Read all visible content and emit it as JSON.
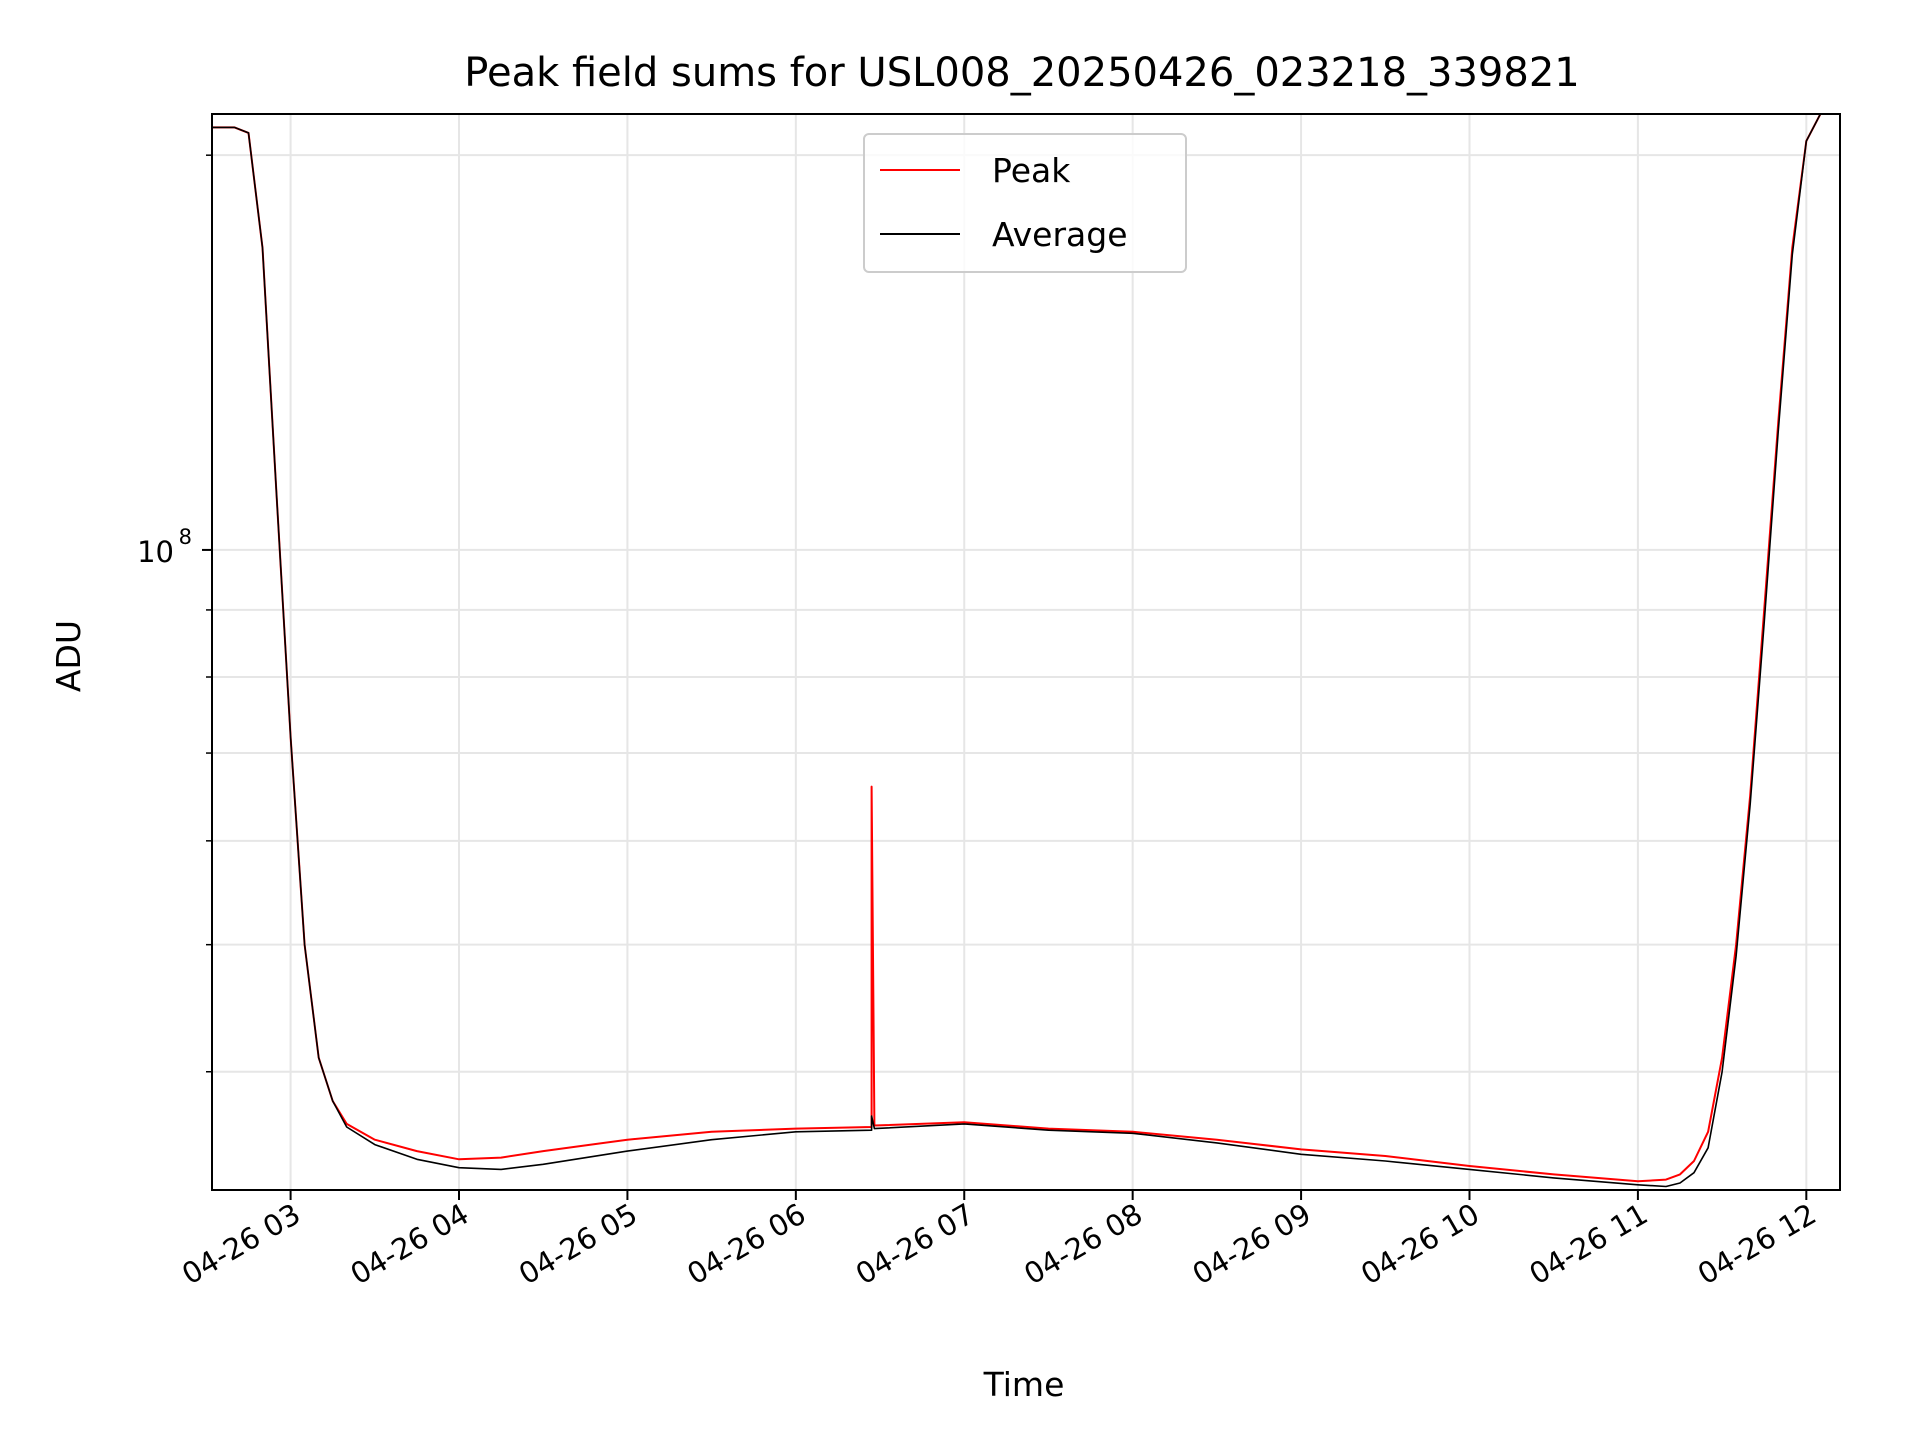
{
  "chart_data": {
    "type": "line",
    "title": "Peak field sums for USL008_20250426_023218_339821",
    "xlabel": "Time",
    "ylabel": "ADU",
    "yscale": "log",
    "grid": true,
    "legend_position": "upper-center",
    "x_tick_labels": [
      "04-26 03",
      "04-26 04",
      "04-26 05",
      "04-26 06",
      "04-26 07",
      "04-26 08",
      "04-26 09",
      "04-26 10",
      "04-26 11",
      "04-26 12"
    ],
    "y_tick_labels": [
      {
        "base": "10",
        "exponent": "8",
        "value": 100000000
      }
    ],
    "xlim": [
      "2025-04-26 02:32",
      "2025-04-26 12:12"
    ],
    "ylim": [
      32500000,
      215000000
    ],
    "series": [
      {
        "name": "Peak",
        "color": "#ff0000",
        "x": [
          "2025-04-26 02:32",
          "2025-04-26 02:40",
          "2025-04-26 02:45",
          "2025-04-26 02:50",
          "2025-04-26 02:55",
          "2025-04-26 03:00",
          "2025-04-26 03:05",
          "2025-04-26 03:10",
          "2025-04-26 03:15",
          "2025-04-26 03:20",
          "2025-04-26 03:30",
          "2025-04-26 03:45",
          "2025-04-26 04:00",
          "2025-04-26 04:15",
          "2025-04-26 04:30",
          "2025-04-26 05:00",
          "2025-04-26 05:30",
          "2025-04-26 06:00",
          "2025-04-26 06:27",
          "2025-04-26 06:27",
          "2025-04-26 06:28",
          "2025-04-26 07:00",
          "2025-04-26 07:30",
          "2025-04-26 08:00",
          "2025-04-26 08:30",
          "2025-04-26 09:00",
          "2025-04-26 09:30",
          "2025-04-26 10:00",
          "2025-04-26 10:30",
          "2025-04-26 11:00",
          "2025-04-26 11:10",
          "2025-04-26 11:15",
          "2025-04-26 11:20",
          "2025-04-26 11:25",
          "2025-04-26 11:30",
          "2025-04-26 11:35",
          "2025-04-26 11:40",
          "2025-04-26 11:45",
          "2025-04-26 11:50",
          "2025-04-26 11:55",
          "2025-04-26 12:00",
          "2025-04-26 12:05"
        ],
        "values": [
          210000000,
          210000000,
          208000000,
          170000000,
          110000000,
          72000000,
          50000000,
          41000000,
          38000000,
          36500000,
          35500000,
          34800000,
          34300000,
          34400000,
          34800000,
          35500000,
          36000000,
          36200000,
          36300000,
          66000000,
          36400000,
          36600000,
          36200000,
          36000000,
          35500000,
          34900000,
          34500000,
          33900000,
          33400000,
          33000000,
          33100000,
          33400000,
          34200000,
          36000000,
          41000000,
          50000000,
          65000000,
          90000000,
          125000000,
          170000000,
          205000000,
          215000000
        ]
      },
      {
        "name": "Average",
        "color": "#000000",
        "x": [
          "2025-04-26 02:32",
          "2025-04-26 02:40",
          "2025-04-26 02:45",
          "2025-04-26 02:50",
          "2025-04-26 02:55",
          "2025-04-26 03:00",
          "2025-04-26 03:05",
          "2025-04-26 03:10",
          "2025-04-26 03:15",
          "2025-04-26 03:20",
          "2025-04-26 03:30",
          "2025-04-26 03:45",
          "2025-04-26 04:00",
          "2025-04-26 04:15",
          "2025-04-26 04:30",
          "2025-04-26 05:00",
          "2025-04-26 05:30",
          "2025-04-26 06:00",
          "2025-04-26 06:27",
          "2025-04-26 06:27",
          "2025-04-26 06:28",
          "2025-04-26 07:00",
          "2025-04-26 07:30",
          "2025-04-26 08:00",
          "2025-04-26 08:30",
          "2025-04-26 09:00",
          "2025-04-26 09:30",
          "2025-04-26 10:00",
          "2025-04-26 10:30",
          "2025-04-26 11:00",
          "2025-04-26 11:10",
          "2025-04-26 11:15",
          "2025-04-26 11:20",
          "2025-04-26 11:25",
          "2025-04-26 11:30",
          "2025-04-26 11:35",
          "2025-04-26 11:40",
          "2025-04-26 11:45",
          "2025-04-26 11:50",
          "2025-04-26 11:55",
          "2025-04-26 12:00",
          "2025-04-26 12:05"
        ],
        "values": [
          210000000,
          210000000,
          208000000,
          170000000,
          110000000,
          72000000,
          50000000,
          41000000,
          38000000,
          36300000,
          35200000,
          34300000,
          33800000,
          33700000,
          34000000,
          34800000,
          35500000,
          36000000,
          36100000,
          37000000,
          36200000,
          36500000,
          36100000,
          35900000,
          35300000,
          34600000,
          34200000,
          33700000,
          33200000,
          32800000,
          32700000,
          32900000,
          33500000,
          35000000,
          40000000,
          49000000,
          64000000,
          88000000,
          123000000,
          168000000,
          205000000,
          215000000
        ]
      }
    ]
  }
}
